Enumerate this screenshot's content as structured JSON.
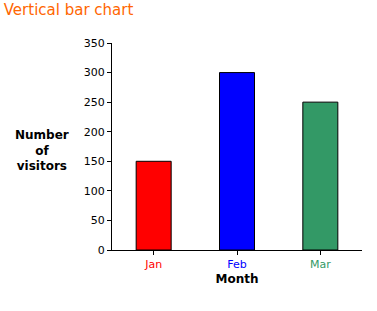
{
  "chart_data": {
    "type": "bar",
    "title": "Vertical bar chart",
    "x_label": "Month",
    "y_label": "Number of visitors",
    "categories": [
      "Jan",
      "Feb",
      "Mar"
    ],
    "values": [
      150,
      300,
      250
    ],
    "colors": [
      "#ff0000",
      "#0000ff",
      "#339966"
    ],
    "ylim": [
      0,
      350
    ],
    "yticks": [
      0,
      50,
      100,
      150,
      200,
      250,
      300,
      350
    ],
    "grid": false
  }
}
